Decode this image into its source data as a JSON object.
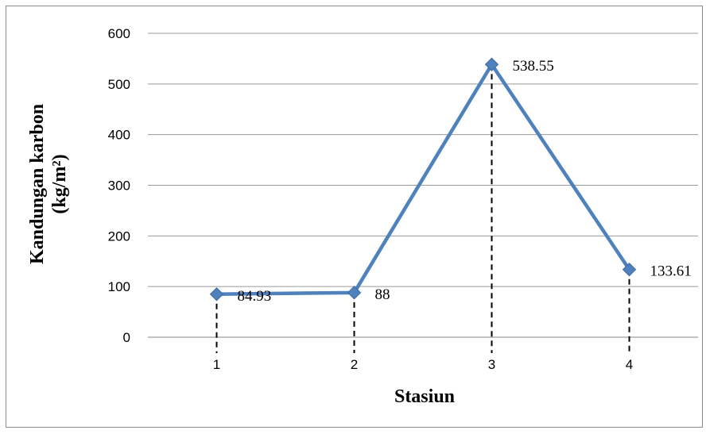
{
  "chart_data": {
    "type": "line",
    "x": [
      "1",
      "2",
      "3",
      "4"
    ],
    "values": [
      84.93,
      88,
      538.55,
      133.61
    ],
    "data_labels": [
      "84.93",
      "88",
      "538.55",
      "133.61"
    ],
    "xlabel": "Stasiun",
    "ylabel": [
      "Kandungan karbon",
      "(kg/m²)"
    ],
    "ylim": [
      0,
      600
    ],
    "yticks": [
      0,
      100,
      200,
      300,
      400,
      500,
      600
    ],
    "grid": "horizontal",
    "drop_lines": true,
    "marker": "diamond",
    "line_color": "#4f81bd",
    "legend": "none"
  }
}
